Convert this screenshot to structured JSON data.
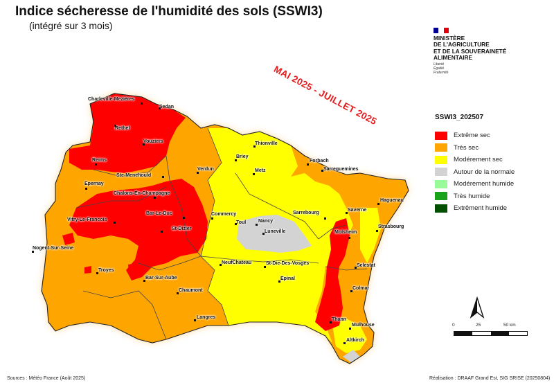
{
  "title": "Indice sécheresse de l'humidité des sols (SSWI3)",
  "subtitle": "(intégré sur 3 mois)",
  "period": "MAI 2025 - JUILLET 2025",
  "ministry": {
    "name_lines": [
      "MINISTÈRE",
      "DE L'AGRICULTURE",
      "ET DE LA SOUVERAINETÉ",
      "ALIMENTAIRE"
    ],
    "motto_lines": [
      "Liberté",
      "Égalité",
      "Fraternité"
    ],
    "flag_colors": [
      "#000091",
      "#ffffff",
      "#e1000f"
    ]
  },
  "legend": {
    "title": "SSWI3_202507",
    "items": [
      {
        "label": "Extrême sec",
        "color": "#ff0000"
      },
      {
        "label": "Très sec",
        "color": "#ffa500"
      },
      {
        "label": "Modérement sec",
        "color": "#ffff00"
      },
      {
        "label": "Autour de la normale",
        "color": "#d3d3d3"
      },
      {
        "label": "Modérement humide",
        "color": "#98fb98"
      },
      {
        "label": "Très humide",
        "color": "#1aa31a"
      },
      {
        "label": "Extrêment humide",
        "color": "#005000"
      }
    ]
  },
  "places": [
    {
      "name": "Charleville-Mezières"
    },
    {
      "name": "Sedan"
    },
    {
      "name": "Rethel"
    },
    {
      "name": "Vouziers"
    },
    {
      "name": "Reims"
    },
    {
      "name": "Ste-Menehould"
    },
    {
      "name": "Epernay"
    },
    {
      "name": "Chalons-En-Champagne"
    },
    {
      "name": "Verdun"
    },
    {
      "name": "Vitry-Le-Francois"
    },
    {
      "name": "Bar-Le-Duc"
    },
    {
      "name": "St-Dizier"
    },
    {
      "name": "Commercy"
    },
    {
      "name": "Toul"
    },
    {
      "name": "Nancy"
    },
    {
      "name": "Luneville"
    },
    {
      "name": "Nogent-Sur-Seine"
    },
    {
      "name": "Troyes"
    },
    {
      "name": "Bar-Sur-Aube"
    },
    {
      "name": "Chaumont"
    },
    {
      "name": "Langres"
    },
    {
      "name": "NeufChateau"
    },
    {
      "name": "St-Die-Des-Vosges"
    },
    {
      "name": "Epinal"
    },
    {
      "name": "Thionville"
    },
    {
      "name": "Briey"
    },
    {
      "name": "Metz"
    },
    {
      "name": "Forbach"
    },
    {
      "name": "Sarreguemines"
    },
    {
      "name": "Sarrebourg"
    },
    {
      "name": "Saverne"
    },
    {
      "name": "Haguenau"
    },
    {
      "name": "Strasbourg"
    },
    {
      "name": "Molsheim"
    },
    {
      "name": "Selestat"
    },
    {
      "name": "Colmar"
    },
    {
      "name": "Thann"
    },
    {
      "name": "Mulhouse"
    },
    {
      "name": "Altkirch"
    }
  ],
  "scale": {
    "ticks": [
      "0",
      "25",
      "50 km"
    ]
  },
  "source": "Sources : Météo France (Août 2025)",
  "credit": "Réalisation : DRAAF Grand Est, SIG SRISE (20250804)"
}
